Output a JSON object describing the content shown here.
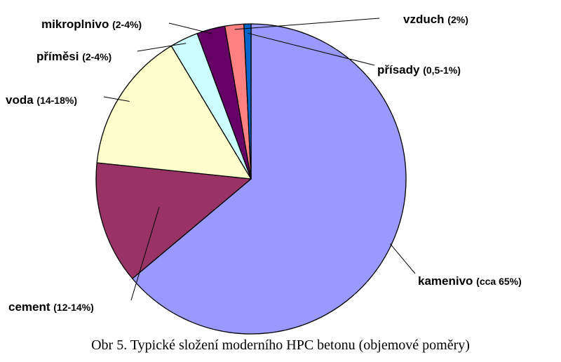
{
  "caption": "Obr 5. Typické složení moderního HPC betonu (objemové poměry)",
  "chart_data": {
    "type": "pie",
    "title": "",
    "start": "12 o'clock",
    "direction": "clockwise",
    "slices": [
      {
        "name": "kamenivo",
        "range": "(cca 65%)",
        "value": 65,
        "color": "#9999ff"
      },
      {
        "name": "cement",
        "range": "(12-14%)",
        "value": 13,
        "color": "#993366"
      },
      {
        "name": "voda",
        "range": "(14-18%)",
        "value": 15,
        "color": "#ffffcc"
      },
      {
        "name": "příměsi",
        "range": "(2-4%)",
        "value": 3,
        "color": "#ccffff"
      },
      {
        "name": "mikroplnivo",
        "range": "(2-4%)",
        "value": 3,
        "color": "#660066"
      },
      {
        "name": "vzduch",
        "range": "(2%)",
        "value": 2,
        "color": "#ff8080"
      },
      {
        "name": "přísady",
        "range": "(0,5-1%)",
        "value": 0.75,
        "color": "#0066cc"
      }
    ]
  }
}
